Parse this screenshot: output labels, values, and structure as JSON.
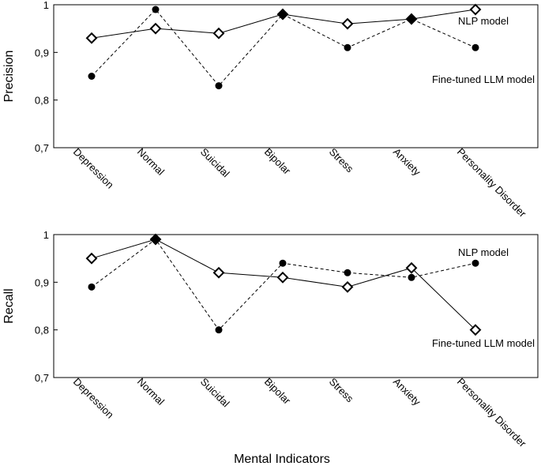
{
  "xlabel": "Mental Indicators",
  "colors": {
    "line": "#000000",
    "background": "#ffffff"
  },
  "chart_data": [
    {
      "type": "line",
      "ylabel": "Precision",
      "ylim": [
        0.7,
        1.0
      ],
      "yticks": [
        {
          "value": 0.7,
          "label": "0,7"
        },
        {
          "value": 0.8,
          "label": "0,8"
        },
        {
          "value": 0.9,
          "label": "0,9"
        },
        {
          "value": 1.0,
          "label": "1"
        }
      ],
      "categories": [
        "Depression",
        "Normal",
        "Suicidal",
        "Bipolar",
        "Stress",
        "Anxiety",
        "Personality Disorder"
      ],
      "series": [
        {
          "name": "NLP model",
          "style": "solid",
          "marker": "diamond-open",
          "values": [
            0.93,
            0.95,
            0.94,
            0.98,
            0.96,
            0.97,
            0.99
          ]
        },
        {
          "name": "Fine-tuned LLM model",
          "style": "dashed",
          "marker": "circle-filled",
          "values": [
            0.85,
            0.99,
            0.83,
            0.98,
            0.91,
            0.97,
            0.91
          ]
        }
      ]
    },
    {
      "type": "line",
      "ylabel": "Recall",
      "ylim": [
        0.7,
        1.0
      ],
      "yticks": [
        {
          "value": 0.7,
          "label": "0,7"
        },
        {
          "value": 0.8,
          "label": "0,8"
        },
        {
          "value": 0.9,
          "label": "0,9"
        },
        {
          "value": 1.0,
          "label": "1"
        }
      ],
      "categories": [
        "Depression",
        "Normal",
        "Suicidal",
        "Bipolar",
        "Stress",
        "Anxiety",
        "Personality Disorder"
      ],
      "series": [
        {
          "name": "NLP model",
          "style": "solid",
          "marker": "diamond-open",
          "values": [
            0.95,
            0.99,
            0.92,
            0.91,
            0.89,
            0.93,
            0.8
          ]
        },
        {
          "name": "Fine-tuned LLM model",
          "style": "dashed",
          "marker": "circle-filled",
          "values": [
            0.89,
            0.99,
            0.8,
            0.94,
            0.92,
            0.91,
            0.94
          ]
        }
      ]
    }
  ]
}
